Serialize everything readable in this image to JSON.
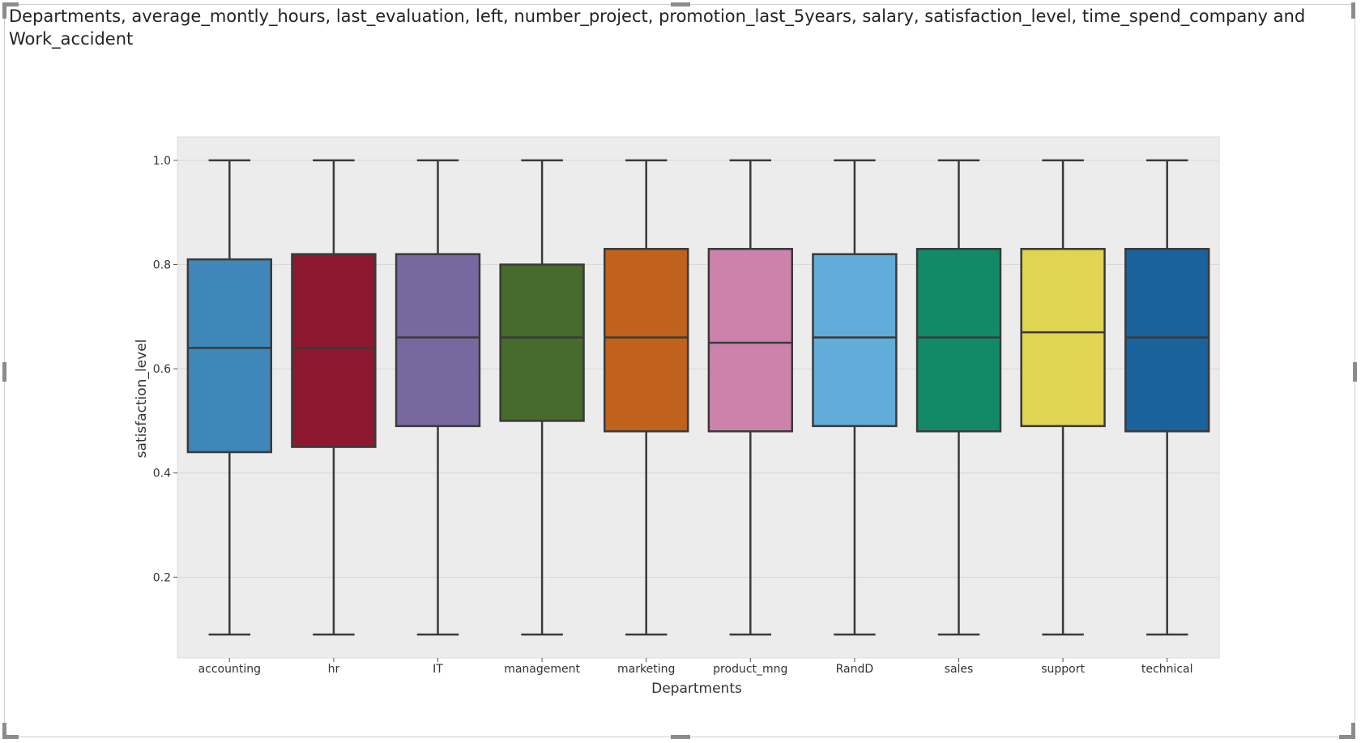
{
  "visual": {
    "title": "Departments, average_montly_hours, last_evaluation, left, number_project, promotion_last_5years, salary, satisfaction_level, time_spend_company and Work_accident"
  },
  "chart_data": {
    "type": "box",
    "title": "",
    "xlabel": "Departments",
    "ylabel": "satisfaction_level",
    "ylim": [
      0.045,
      1.045
    ],
    "yticks": [
      "0.2",
      "0.4",
      "0.6",
      "0.8",
      "1.0"
    ],
    "grid": true,
    "legend": "none",
    "categories": [
      "accounting",
      "hr",
      "IT",
      "management",
      "marketing",
      "product_mng",
      "RandD",
      "sales",
      "support",
      "technical"
    ],
    "colors": [
      "#3f87b8",
      "#8e1830",
      "#7968a0",
      "#466b2c",
      "#c0621c",
      "#cc82aa",
      "#62acd9",
      "#128a69",
      "#e2d453",
      "#19629c"
    ],
    "boxes": [
      {
        "whisker_low": 0.09,
        "q1": 0.44,
        "median": 0.64,
        "q3": 0.81,
        "whisker_high": 1.0
      },
      {
        "whisker_low": 0.09,
        "q1": 0.45,
        "median": 0.64,
        "q3": 0.82,
        "whisker_high": 1.0
      },
      {
        "whisker_low": 0.09,
        "q1": 0.49,
        "median": 0.66,
        "q3": 0.82,
        "whisker_high": 1.0
      },
      {
        "whisker_low": 0.09,
        "q1": 0.5,
        "median": 0.66,
        "q3": 0.8,
        "whisker_high": 1.0
      },
      {
        "whisker_low": 0.09,
        "q1": 0.48,
        "median": 0.66,
        "q3": 0.83,
        "whisker_high": 1.0
      },
      {
        "whisker_low": 0.09,
        "q1": 0.48,
        "median": 0.65,
        "q3": 0.83,
        "whisker_high": 1.0
      },
      {
        "whisker_low": 0.09,
        "q1": 0.49,
        "median": 0.66,
        "q3": 0.82,
        "whisker_high": 1.0
      },
      {
        "whisker_low": 0.09,
        "q1": 0.48,
        "median": 0.66,
        "q3": 0.83,
        "whisker_high": 1.0
      },
      {
        "whisker_low": 0.09,
        "q1": 0.49,
        "median": 0.67,
        "q3": 0.83,
        "whisker_high": 1.0
      },
      {
        "whisker_low": 0.09,
        "q1": 0.48,
        "median": 0.66,
        "q3": 0.83,
        "whisker_high": 1.0
      }
    ]
  }
}
